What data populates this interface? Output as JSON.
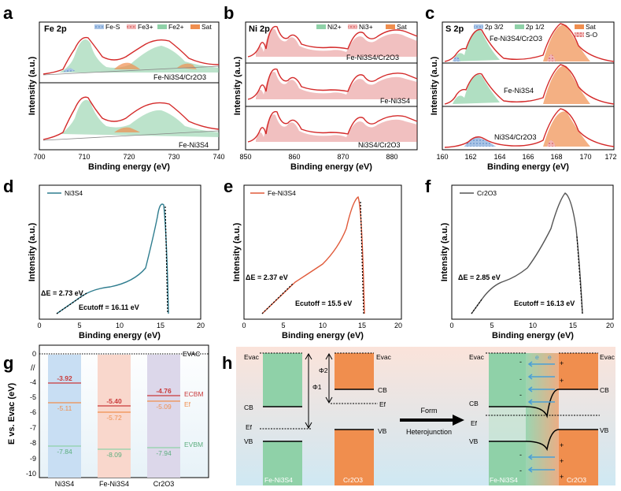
{
  "panels": {
    "a": {
      "label": "a",
      "region": "Fe 2p",
      "legend": [
        "Fe-S",
        "Fe3+",
        "Fe2+",
        "Sat"
      ],
      "samples": [
        "Fe-Ni3S4/Cr2O3",
        "Fe-Ni3S4"
      ],
      "ticks": [
        "700",
        "710",
        "720",
        "730",
        "740"
      ]
    },
    "b": {
      "label": "b",
      "region": "Ni 2p",
      "legend": [
        "Ni2+",
        "Ni3+",
        "Sat"
      ],
      "samples": [
        "Fe-Ni3S4/Cr2O3",
        "Fe-Ni3S4",
        "Ni3S4/Cr2O3"
      ],
      "ticks": [
        "850",
        "860",
        "870",
        "880"
      ]
    },
    "c": {
      "label": "c",
      "region": "S 2p",
      "legend": [
        "2p 3/2",
        "2p 1/2",
        "Sat",
        "S-O"
      ],
      "samples": [
        "Fe-Ni3S4/Cr2O3",
        "Fe-Ni3S4",
        "Ni3S4/Cr2O3"
      ],
      "ticks": [
        "160",
        "162",
        "164",
        "166",
        "168",
        "170",
        "172"
      ]
    },
    "d": {
      "label": "d",
      "legend": "Ni3S4",
      "delta": "ΔE = 2.73 eV",
      "cutoff": "Ecutoff = 16.11 eV",
      "ticks": [
        "0",
        "5",
        "10",
        "15",
        "20"
      ]
    },
    "e": {
      "label": "e",
      "legend": "Fe-Ni3S4",
      "delta": "ΔE = 2.37 eV",
      "cutoff": "Ecutoff = 15.5 eV",
      "ticks": [
        "0",
        "5",
        "10",
        "15",
        "20"
      ]
    },
    "f": {
      "label": "f",
      "legend": "Cr2O3",
      "delta": "ΔE = 2.85 eV",
      "cutoff": "Ecutoff = 16.13 eV",
      "ticks": [
        "0",
        "5",
        "10",
        "15",
        "20"
      ]
    },
    "g": {
      "label": "g",
      "ylabel": "E vs. Evac (eV)",
      "yticks": [
        "0",
        "-4",
        "-5",
        "-6",
        "-7",
        "-8",
        "-9",
        "-10"
      ],
      "columns": [
        {
          "name": "Ni3S4",
          "cbm": "-3.92",
          "ef": "-5.11",
          "vbm": "-7.84"
        },
        {
          "name": "Fe-Ni3S4",
          "cbm": "-5.40",
          "ef": "-5.72",
          "vbm": "-8.09"
        },
        {
          "name": "Cr2O3",
          "cbm": "-4.76",
          "ef": "-5.09",
          "vbm": "-7.94"
        }
      ],
      "level_labels": {
        "vac": "EVAC",
        "cbm": "ECBM",
        "ef": "Ef",
        "vbm": "EVBM"
      }
    },
    "h": {
      "label": "h",
      "evac": "Evac",
      "cb": "CB",
      "vb": "VB",
      "ef": "Ef",
      "phi1": "Φ1",
      "phi2": "Φ2",
      "arrow_text": [
        "Form",
        "Heterojunction"
      ],
      "left_material": "Fe-Ni3S4",
      "right_material": "Cr2O3",
      "electron": "e",
      "minus": "-",
      "plus": "+"
    },
    "common": {
      "xlabel": "Binding energy (eV)",
      "ylabel": "Intensity (a.u.)"
    }
  },
  "colors": {
    "green": "#8fd1a8",
    "red": "#d84a4a",
    "orange": "#f08e4e",
    "blue": "#4a7fbf",
    "teal": "#2f7d8f",
    "bg_blue": "#d4ecf5"
  }
}
